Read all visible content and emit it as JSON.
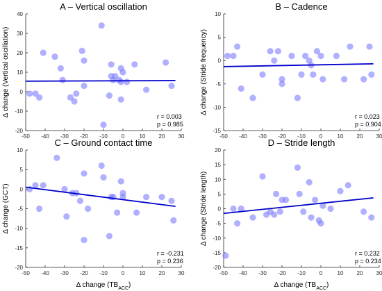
{
  "colors": {
    "point": "#7b7bff",
    "line": "#0000cc",
    "axis": "#262626"
  },
  "chart_data": [
    {
      "type": "scatter",
      "title": "A – Vertical oscillation",
      "xlabel": "",
      "ylabel": "Δ change (Vertical oscillation)",
      "xlim": [
        -50,
        30
      ],
      "ylim": [
        -20,
        40
      ],
      "xticks": [
        "-50",
        "-40",
        "-30",
        "-20",
        "-10",
        "0",
        "10",
        "20",
        "30"
      ],
      "yticks": [
        "-20",
        "-10",
        "0",
        "10",
        "20",
        "30",
        "40"
      ],
      "points": [
        [
          -48,
          -1
        ],
        [
          -45,
          -1
        ],
        [
          -43,
          -3
        ],
        [
          -41,
          20
        ],
        [
          -35,
          18
        ],
        [
          -32,
          12
        ],
        [
          -31,
          6
        ],
        [
          -27,
          -3
        ],
        [
          -25,
          -5
        ],
        [
          -24,
          -1
        ],
        [
          -21,
          21
        ],
        [
          -20,
          16
        ],
        [
          -20,
          3
        ],
        [
          -11,
          34
        ],
        [
          -10,
          -17
        ],
        [
          -7,
          -2
        ],
        [
          -6,
          14
        ],
        [
          -6,
          8
        ],
        [
          -5,
          6
        ],
        [
          -4,
          8
        ],
        [
          -2,
          6
        ],
        [
          -1,
          12
        ],
        [
          -1,
          5
        ],
        [
          -1,
          -4
        ],
        [
          0,
          10
        ],
        [
          2,
          5
        ],
        [
          6,
          14
        ],
        [
          12,
          1
        ],
        [
          22,
          15
        ],
        [
          25,
          3
        ]
      ],
      "fit": {
        "x": [
          -50,
          27
        ],
        "y": [
          5.4,
          5.7
        ]
      },
      "stats": {
        "r": "r = 0.003",
        "p": "p = 0.985"
      }
    },
    {
      "type": "scatter",
      "title": "B – Cadence",
      "xlabel": "",
      "ylabel": "Δ change (Stride frequency)",
      "xlim": [
        -50,
        30
      ],
      "ylim": [
        -15,
        10
      ],
      "xticks": [
        "-50",
        "-40",
        "-30",
        "-20",
        "-10",
        "0",
        "10",
        "20",
        "30"
      ],
      "yticks": [
        "-15",
        "-10",
        "-5",
        "0",
        "5",
        "10"
      ],
      "points": [
        [
          -48,
          1
        ],
        [
          -45,
          1
        ],
        [
          -43,
          3
        ],
        [
          -41,
          -6
        ],
        [
          -35,
          -8
        ],
        [
          -30,
          -3
        ],
        [
          -26,
          2
        ],
        [
          -24,
          0
        ],
        [
          -22,
          2
        ],
        [
          -20,
          -4
        ],
        [
          -20,
          -5
        ],
        [
          -15,
          1
        ],
        [
          -12,
          -8
        ],
        [
          -10,
          -3
        ],
        [
          -8,
          1
        ],
        [
          -6,
          0
        ],
        [
          -5,
          -1
        ],
        [
          -4,
          -3
        ],
        [
          -2,
          2
        ],
        [
          0,
          1
        ],
        [
          1,
          -4
        ],
        [
          8,
          1
        ],
        [
          12,
          -4
        ],
        [
          15,
          3
        ],
        [
          22,
          -4
        ],
        [
          25,
          3
        ],
        [
          26,
          -3
        ]
      ],
      "fit": {
        "x": [
          -50,
          27
        ],
        "y": [
          -1.3,
          -0.7
        ]
      },
      "stats": {
        "r": "r = 0.023",
        "p": "p = 0.904"
      }
    },
    {
      "type": "scatter",
      "title": "C – Ground contact time",
      "xlabel": "Δ change (TBACC)",
      "ylabel": "Δ change (GCT)",
      "xlim": [
        -50,
        30
      ],
      "ylim": [
        -20,
        10
      ],
      "xticks": [
        "-50",
        "-40",
        "-30",
        "-20",
        "-10",
        "0",
        "10",
        "20",
        "30"
      ],
      "yticks": [
        "-20",
        "-15",
        "-10",
        "-5",
        "0",
        "5",
        "10"
      ],
      "points": [
        [
          -48,
          0
        ],
        [
          -45,
          1
        ],
        [
          -43,
          -5
        ],
        [
          -41,
          1
        ],
        [
          -34,
          8
        ],
        [
          -30,
          0
        ],
        [
          -29,
          -7
        ],
        [
          -26,
          -1
        ],
        [
          -24,
          -1
        ],
        [
          -22,
          -3
        ],
        [
          -20,
          4
        ],
        [
          -20,
          -13
        ],
        [
          -18,
          -5
        ],
        [
          -11,
          6
        ],
        [
          -10,
          3
        ],
        [
          -7,
          -12
        ],
        [
          -6,
          -2
        ],
        [
          -5,
          -2
        ],
        [
          -3,
          -6
        ],
        [
          -1,
          2
        ],
        [
          0,
          -1
        ],
        [
          0,
          -2
        ],
        [
          7,
          -6
        ],
        [
          12,
          -2
        ],
        [
          20,
          -2
        ],
        [
          25,
          -3
        ],
        [
          26,
          -8
        ]
      ],
      "fit": {
        "x": [
          -50,
          27
        ],
        "y": [
          0.5,
          -4.4
        ]
      },
      "stats": {
        "r": "r = -0.231",
        "p": "p = 0.236"
      }
    },
    {
      "type": "scatter",
      "title": "D – Stride length",
      "xlabel": "Δ change (TBACC)",
      "ylabel": "Δ change (Stride length)",
      "xlim": [
        -50,
        30
      ],
      "ylim": [
        -20,
        20
      ],
      "xticks": [
        "-50",
        "-40",
        "-30",
        "-20",
        "-10",
        "0",
        "10",
        "20",
        "30"
      ],
      "yticks": [
        "-20",
        "-15",
        "-10",
        "-5",
        "0",
        "5",
        "10",
        "15",
        "20"
      ],
      "points": [
        [
          -49,
          -16
        ],
        [
          -45,
          0
        ],
        [
          -43,
          -5
        ],
        [
          -41,
          0
        ],
        [
          -35,
          -3
        ],
        [
          -30,
          11
        ],
        [
          -28,
          -2
        ],
        [
          -26,
          -1
        ],
        [
          -24,
          -2
        ],
        [
          -23,
          5
        ],
        [
          -21,
          -1
        ],
        [
          -20,
          3
        ],
        [
          -18,
          3
        ],
        [
          -12,
          14
        ],
        [
          -11,
          5
        ],
        [
          -9,
          -1
        ],
        [
          -6,
          9
        ],
        [
          -5,
          -3
        ],
        [
          -3,
          3
        ],
        [
          -1,
          -4
        ],
        [
          0,
          -5
        ],
        [
          1,
          1
        ],
        [
          5,
          0
        ],
        [
          10,
          6
        ],
        [
          14,
          8
        ],
        [
          22,
          -1
        ],
        [
          26,
          -3
        ]
      ],
      "fit": {
        "x": [
          -50,
          27
        ],
        "y": [
          -1.6,
          3.7
        ]
      },
      "stats": {
        "r": "r = 0.232",
        "p": "p = 0.234"
      }
    }
  ]
}
